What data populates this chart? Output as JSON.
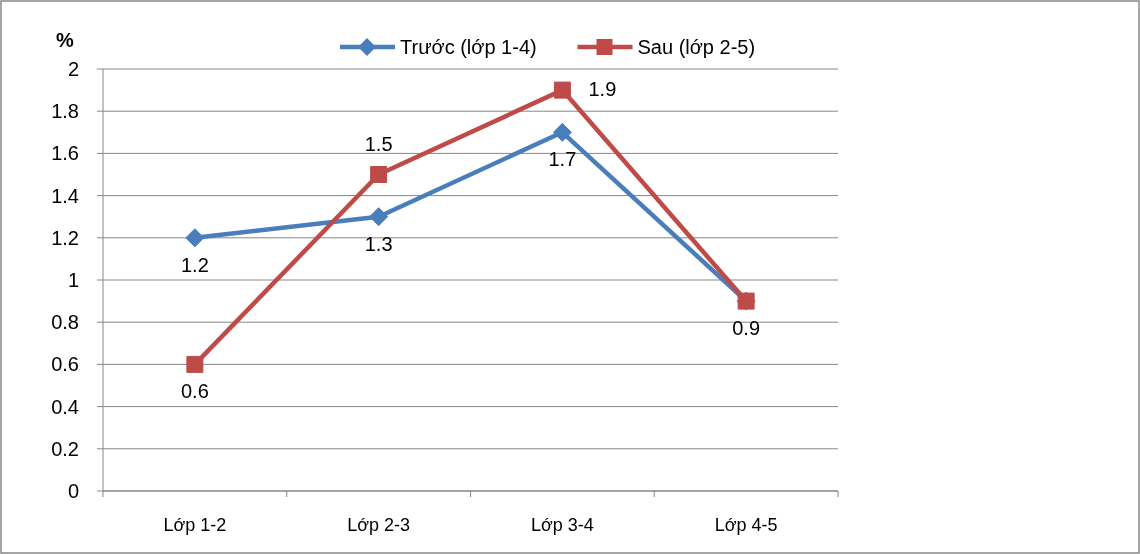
{
  "chart_data": {
    "type": "line",
    "ylabel": "%",
    "categories": [
      "Lớp 1-2",
      "Lớp 2-3",
      "Lớp 3-4",
      "Lớp 4-5"
    ],
    "series": [
      {
        "name": "Trước (lớp 1-4)",
        "color": "#4a7ebb",
        "marker": "diamond",
        "values": [
          1.2,
          1.3,
          1.7,
          0.9
        ],
        "value_labels": [
          "1.2",
          "1.3",
          "1.7",
          null
        ]
      },
      {
        "name": "Sau (lớp 2-5)",
        "color": "#be4b48",
        "marker": "square",
        "values": [
          0.6,
          1.5,
          1.9,
          0.9
        ],
        "value_labels": [
          "0.6",
          "1.5",
          "1.9",
          "0.9"
        ]
      }
    ],
    "ylim": [
      0,
      2
    ],
    "yticks": [
      0,
      0.2,
      0.4,
      0.6,
      0.8,
      1,
      1.2,
      1.4,
      1.6,
      1.8,
      2
    ],
    "grid": "y",
    "legend": "top",
    "line_style": "solid"
  }
}
